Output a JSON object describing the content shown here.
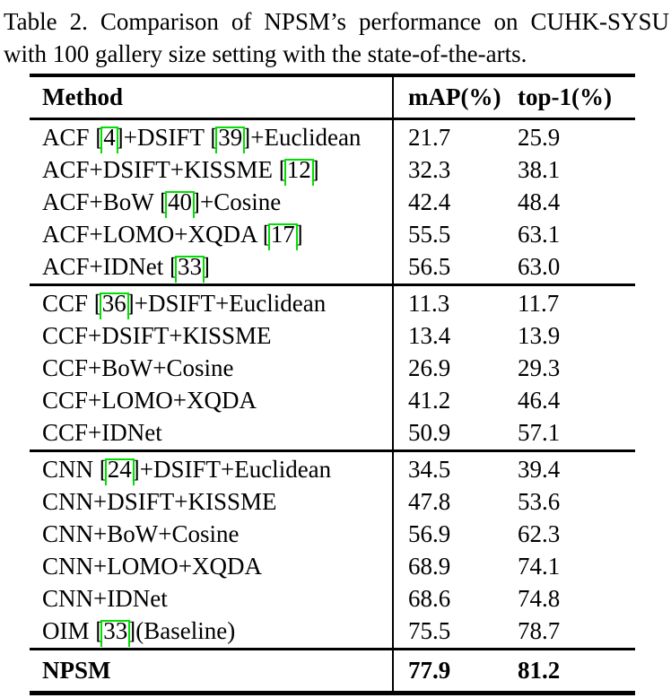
{
  "caption": {
    "line1": "Table 2. Comparison of NPSM’s performance on CUHK-SYSU",
    "line2": "with 100 gallery size setting with the state-of-the-arts."
  },
  "colors": {
    "citation_box": "#00e000",
    "text": "#000000",
    "background": "#ffffff"
  },
  "table": {
    "headers": {
      "method": "Method",
      "map": "mAP(%)",
      "top1": "top-1(%)"
    },
    "groups": [
      {
        "rows": [
          {
            "method": [
              {
                "text": "ACF ["
              },
              {
                "cite": "4"
              },
              {
                "text": "]+DSIFT ["
              },
              {
                "cite": "39"
              },
              {
                "text": "]+Euclidean"
              }
            ],
            "map": "21.7",
            "top1": "25.9"
          },
          {
            "method": [
              {
                "text": "ACF+DSIFT+KISSME ["
              },
              {
                "cite": "12"
              },
              {
                "text": "]"
              }
            ],
            "map": "32.3",
            "top1": "38.1"
          },
          {
            "method": [
              {
                "text": "ACF+BoW ["
              },
              {
                "cite": "40"
              },
              {
                "text": "]+Cosine"
              }
            ],
            "map": "42.4",
            "top1": "48.4"
          },
          {
            "method": [
              {
                "text": "ACF+LOMO+XQDA ["
              },
              {
                "cite": "17"
              },
              {
                "text": "]"
              }
            ],
            "map": "55.5",
            "top1": "63.1"
          },
          {
            "method": [
              {
                "text": "ACF+IDNet ["
              },
              {
                "cite": "33"
              },
              {
                "text": "]"
              }
            ],
            "map": "56.5",
            "top1": "63.0"
          }
        ]
      },
      {
        "rows": [
          {
            "method": [
              {
                "text": "CCF ["
              },
              {
                "cite": "36"
              },
              {
                "text": "]+DSIFT+Euclidean"
              }
            ],
            "map": "11.3",
            "top1": "11.7"
          },
          {
            "method": [
              {
                "text": "CCF+DSIFT+KISSME"
              }
            ],
            "map": "13.4",
            "top1": "13.9"
          },
          {
            "method": [
              {
                "text": "CCF+BoW+Cosine"
              }
            ],
            "map": "26.9",
            "top1": "29.3"
          },
          {
            "method": [
              {
                "text": "CCF+LOMO+XQDA"
              }
            ],
            "map": "41.2",
            "top1": "46.4"
          },
          {
            "method": [
              {
                "text": "CCF+IDNet"
              }
            ],
            "map": "50.9",
            "top1": "57.1"
          }
        ]
      },
      {
        "rows": [
          {
            "method": [
              {
                "text": "CNN ["
              },
              {
                "cite": "24"
              },
              {
                "text": "]+DSIFT+Euclidean"
              }
            ],
            "map": "34.5",
            "top1": "39.4"
          },
          {
            "method": [
              {
                "text": "CNN+DSIFT+KISSME"
              }
            ],
            "map": "47.8",
            "top1": "53.6"
          },
          {
            "method": [
              {
                "text": "CNN+BoW+Cosine"
              }
            ],
            "map": "56.9",
            "top1": "62.3"
          },
          {
            "method": [
              {
                "text": "CNN+LOMO+XQDA"
              }
            ],
            "map": "68.9",
            "top1": "74.1"
          },
          {
            "method": [
              {
                "text": "CNN+IDNet"
              }
            ],
            "map": "68.6",
            "top1": "74.8"
          },
          {
            "method": [
              {
                "text": "OIM ["
              },
              {
                "cite": "33"
              },
              {
                "text": "](Baseline)"
              }
            ],
            "map": "75.5",
            "top1": "78.7"
          }
        ]
      }
    ],
    "final": {
      "method": "NPSM",
      "map": "77.9",
      "top1": "81.2"
    }
  }
}
